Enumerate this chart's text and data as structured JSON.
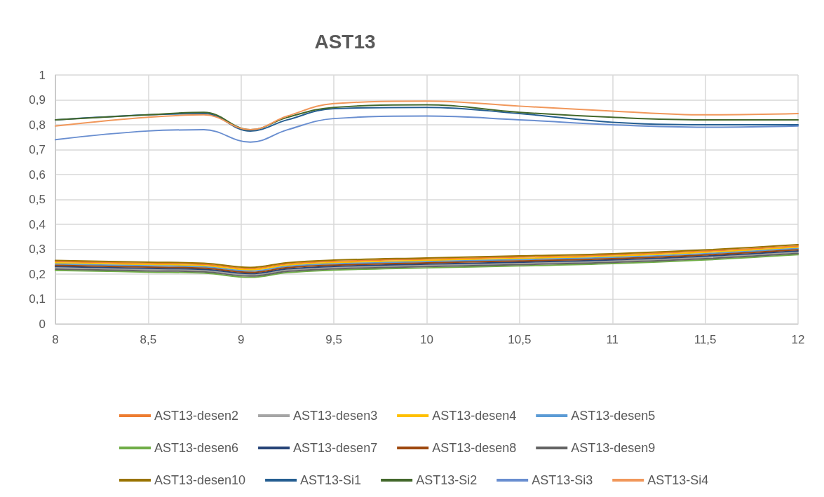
{
  "chart_data": {
    "type": "line",
    "title": "AST13",
    "x": [
      8,
      8.5,
      8.8,
      9.05,
      9.25,
      9.5,
      10,
      10.5,
      11,
      11.5,
      12
    ],
    "xlim": [
      8,
      12
    ],
    "xticks": [
      8,
      {
        "value": 8.5,
        "label": "8,5"
      },
      9,
      {
        "value": 9.5,
        "label": "9,5"
      },
      10,
      {
        "value": 10.5,
        "label": "10,5"
      },
      11,
      {
        "value": 11.5,
        "label": "11,5"
      },
      12
    ],
    "ylim": [
      0,
      1
    ],
    "yticks": [
      0,
      {
        "value": 0.1,
        "label": "0,1"
      },
      {
        "value": 0.2,
        "label": "0,2"
      },
      {
        "value": 0.3,
        "label": "0,3"
      },
      {
        "value": 0.4,
        "label": "0,4"
      },
      {
        "value": 0.5,
        "label": "0,5"
      },
      {
        "value": 0.6,
        "label": "0,6"
      },
      {
        "value": 0.7,
        "label": "0,7"
      },
      {
        "value": 0.8,
        "label": "0,8"
      },
      {
        "value": 0.9,
        "label": "0,9"
      },
      1
    ],
    "grid": true,
    "legend": "bottom",
    "marker": "none",
    "line_style": "solid",
    "series": [
      {
        "name": "AST13-desen2",
        "color": "#ed7d31",
        "values": [
          0.25,
          0.243,
          0.239,
          0.222,
          0.241,
          0.251,
          0.26,
          0.268,
          0.277,
          0.292,
          0.313
        ]
      },
      {
        "name": "AST13-desen3",
        "color": "#a5a5a5",
        "values": [
          0.225,
          0.218,
          0.214,
          0.197,
          0.216,
          0.226,
          0.235,
          0.243,
          0.252,
          0.267,
          0.288
        ]
      },
      {
        "name": "AST13-desen4",
        "color": "#ffc000",
        "values": [
          0.245,
          0.238,
          0.234,
          0.217,
          0.236,
          0.246,
          0.255,
          0.263,
          0.272,
          0.287,
          0.308
        ]
      },
      {
        "name": "AST13-desen5",
        "color": "#5b9bd5",
        "values": [
          0.24,
          0.233,
          0.229,
          0.212,
          0.231,
          0.241,
          0.25,
          0.258,
          0.267,
          0.282,
          0.303
        ]
      },
      {
        "name": "AST13-desen6",
        "color": "#70ad47",
        "values": [
          0.215,
          0.208,
          0.204,
          0.187,
          0.206,
          0.216,
          0.225,
          0.233,
          0.242,
          0.257,
          0.278
        ]
      },
      {
        "name": "AST13-desen7",
        "color": "#264478",
        "values": [
          0.23,
          0.223,
          0.219,
          0.202,
          0.221,
          0.231,
          0.24,
          0.248,
          0.257,
          0.272,
          0.293
        ]
      },
      {
        "name": "AST13-desen8",
        "color": "#9e480e",
        "values": [
          0.235,
          0.228,
          0.224,
          0.207,
          0.226,
          0.236,
          0.245,
          0.253,
          0.262,
          0.277,
          0.298
        ]
      },
      {
        "name": "AST13-desen9",
        "color": "#636363",
        "values": [
          0.22,
          0.213,
          0.209,
          0.192,
          0.211,
          0.221,
          0.23,
          0.238,
          0.247,
          0.262,
          0.283
        ]
      },
      {
        "name": "AST13-desen10",
        "color": "#997300",
        "values": [
          0.255,
          0.248,
          0.244,
          0.227,
          0.246,
          0.256,
          0.265,
          0.273,
          0.282,
          0.297,
          0.318
        ]
      },
      {
        "name": "AST13-Si1",
        "color": "#255e91",
        "values": [
          0.82,
          0.84,
          0.845,
          0.775,
          0.82,
          0.865,
          0.87,
          0.845,
          0.81,
          0.8,
          0.8
        ]
      },
      {
        "name": "AST13-Si2",
        "color": "#43682b",
        "values": [
          0.82,
          0.84,
          0.85,
          0.78,
          0.83,
          0.87,
          0.88,
          0.85,
          0.83,
          0.82,
          0.82
        ]
      },
      {
        "name": "AST13-Si3",
        "color": "#698ed0",
        "values": [
          0.74,
          0.775,
          0.78,
          0.73,
          0.78,
          0.825,
          0.835,
          0.82,
          0.8,
          0.79,
          0.795
        ]
      },
      {
        "name": "AST13-Si4",
        "color": "#f1975a",
        "values": [
          0.795,
          0.83,
          0.84,
          0.78,
          0.835,
          0.885,
          0.895,
          0.875,
          0.855,
          0.84,
          0.845
        ]
      }
    ]
  }
}
